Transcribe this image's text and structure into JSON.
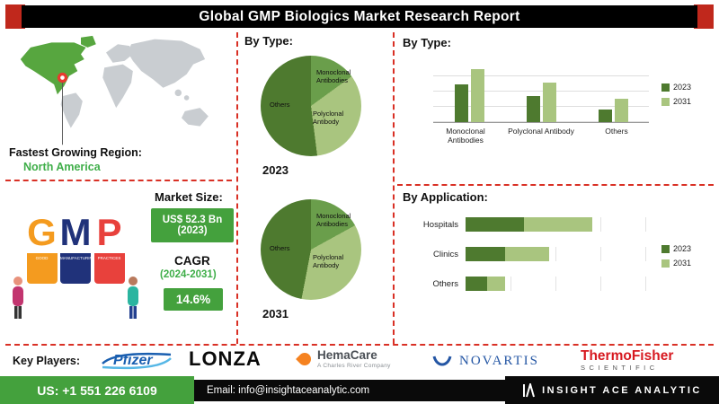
{
  "header": {
    "title": "Global GMP Biologics Market Research Report"
  },
  "region": {
    "label": "Fastest Growing Region:",
    "value": "North America"
  },
  "market": {
    "size_label": "Market Size:",
    "size_value": "US$ 52.3 Bn\n(2023)",
    "cagr_label": "CAGR",
    "cagr_period": "(2024-2031)",
    "cagr_value": "14.6%"
  },
  "gmp": {
    "letters": [
      "G",
      "M",
      "P"
    ],
    "ribbons": [
      "GOOD",
      "MANUFACTURING",
      "PRACTICES"
    ]
  },
  "pies": {
    "heading": "By Type:",
    "labels": {
      "mono": "Monoclonal\nAntibodies",
      "poly": "Polyclonal\nAntibody",
      "others": "Others"
    },
    "year1": "2023",
    "year2": "2031"
  },
  "bytype_heading": "By Type:",
  "byapp_heading": "By Application:",
  "players": {
    "label": "Key Players:",
    "pfizer": "Pfizer",
    "lonza": "LONZA",
    "hemacare": "HemaCare",
    "hemacare_sub": "A Charles River Company",
    "novartis": "NOVARTIS",
    "thermo": "ThermoFisher",
    "thermo_sub": "SCIENTIFIC"
  },
  "footer": {
    "phone": "US: +1 551 226 6109",
    "email": "Email: info@insightaceanalytic.com",
    "brand": "INSIGHT ACE ANALYTIC"
  },
  "colors": {
    "dark_green": "#4e7a2f",
    "light_green": "#a9c57f",
    "accent_green": "#44a13d",
    "divider_red": "#d93025"
  },
  "chart_data": [
    {
      "type": "pie",
      "title": "By Type: 2023",
      "labels": [
        "Monoclonal Antibodies",
        "Polyclonal Antibody",
        "Others"
      ],
      "values": [
        15,
        33,
        52
      ],
      "colors": [
        "#6a9e4b",
        "#a9c57f",
        "#4e7a2f"
      ]
    },
    {
      "type": "pie",
      "title": "By Type: 2031",
      "labels": [
        "Monoclonal Antibodies",
        "Polyclonal Antibody",
        "Others"
      ],
      "values": [
        17,
        36,
        47
      ],
      "colors": [
        "#6a9e4b",
        "#a9c57f",
        "#4e7a2f"
      ]
    },
    {
      "type": "bar",
      "title": "By Type:",
      "categories": [
        "Monoclonal Antibodies",
        "Polyclonal Antibody",
        "Others"
      ],
      "series": [
        {
          "name": "2023",
          "values": [
            55,
            38,
            18
          ]
        },
        {
          "name": "2031",
          "values": [
            78,
            58,
            35
          ]
        }
      ],
      "colors": [
        "#4e7a2f",
        "#a9c57f"
      ],
      "ymax": 90,
      "grid": true,
      "legend_position": "right"
    },
    {
      "type": "bar",
      "orientation": "horizontal",
      "stacked": true,
      "title": "By Application:",
      "categories": [
        "Hospitals",
        "Clinics",
        "Others"
      ],
      "series": [
        {
          "name": "2023",
          "values": [
            32,
            22,
            12
          ]
        },
        {
          "name": "2031",
          "values": [
            38,
            24,
            10
          ]
        }
      ],
      "colors": [
        "#4e7a2f",
        "#a9c57f"
      ],
      "xmax": 100,
      "grid": true,
      "legend_position": "right"
    }
  ]
}
